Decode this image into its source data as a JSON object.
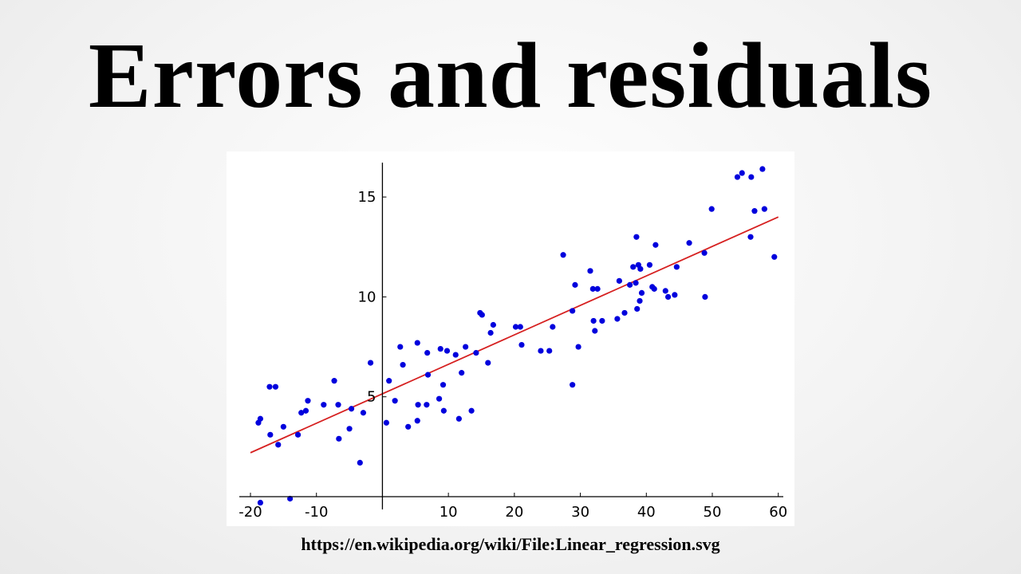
{
  "slide": {
    "title": "Errors and residuals",
    "source_url": "https://en.wikipedia.org/wiki/File:Linear_regression.svg"
  },
  "colors": {
    "points": "#0000dd",
    "regression_line": "#d62020",
    "axes": "#000000"
  },
  "chart_data": {
    "type": "scatter",
    "title": "",
    "xlabel": "",
    "ylabel": "",
    "xlim": [
      -20,
      61
    ],
    "ylim": [
      0,
      16.8
    ],
    "grid": false,
    "x_ticks": [
      -20,
      -10,
      10,
      20,
      30,
      40,
      50,
      60
    ],
    "x_tick_labels": [
      "-20",
      "-10",
      "10",
      "20",
      "30",
      "40",
      "50",
      "60"
    ],
    "y_ticks": [
      5,
      10,
      15
    ],
    "y_tick_labels": [
      "5",
      "10",
      "15"
    ],
    "points": [
      [
        -18.5,
        -0.3
      ],
      [
        -18.8,
        3.7
      ],
      [
        -18.5,
        3.9
      ],
      [
        -17.1,
        5.5
      ],
      [
        -16.2,
        5.5
      ],
      [
        -17,
        3.1
      ],
      [
        -15.8,
        2.6
      ],
      [
        -15,
        3.5
      ],
      [
        -14,
        -0.1
      ],
      [
        -12.8,
        3.1
      ],
      [
        -12.3,
        4.2
      ],
      [
        -11.6,
        4.3
      ],
      [
        -11.3,
        4.8
      ],
      [
        -8.9,
        4.6
      ],
      [
        -7.3,
        5.8
      ],
      [
        -6.7,
        4.6
      ],
      [
        -6.6,
        2.9
      ],
      [
        -5,
        3.4
      ],
      [
        -4.7,
        4.4
      ],
      [
        -3.4,
        1.7
      ],
      [
        -2.9,
        4.2
      ],
      [
        -1.8,
        6.7
      ],
      [
        0.6,
        3.7
      ],
      [
        1,
        5.8
      ],
      [
        1.9,
        4.8
      ],
      [
        2.7,
        7.5
      ],
      [
        3.1,
        6.6
      ],
      [
        3.9,
        3.5
      ],
      [
        5.3,
        3.8
      ],
      [
        5.3,
        7.7
      ],
      [
        5.4,
        4.6
      ],
      [
        6.7,
        4.6
      ],
      [
        6.8,
        7.2
      ],
      [
        6.9,
        6.1
      ],
      [
        8.6,
        4.9
      ],
      [
        8.8,
        7.4
      ],
      [
        9.2,
        5.6
      ],
      [
        9.3,
        4.3
      ],
      [
        9.8,
        7.3
      ],
      [
        11.1,
        7.1
      ],
      [
        11.6,
        3.9
      ],
      [
        12,
        6.2
      ],
      [
        12.6,
        7.5
      ],
      [
        13.5,
        4.3
      ],
      [
        14.2,
        7.2
      ],
      [
        14.8,
        9.2
      ],
      [
        15.1,
        9.1
      ],
      [
        16,
        6.7
      ],
      [
        16.4,
        8.2
      ],
      [
        16.8,
        8.6
      ],
      [
        20.2,
        8.5
      ],
      [
        20.9,
        8.5
      ],
      [
        21.1,
        7.6
      ],
      [
        24,
        7.3
      ],
      [
        25.3,
        7.3
      ],
      [
        25.8,
        8.5
      ],
      [
        27.4,
        12.1
      ],
      [
        28.8,
        9.3
      ],
      [
        28.8,
        5.6
      ],
      [
        29.2,
        10.6
      ],
      [
        29.7,
        7.5
      ],
      [
        31.5,
        11.3
      ],
      [
        31.9,
        10.4
      ],
      [
        32,
        8.8
      ],
      [
        32.2,
        8.3
      ],
      [
        32.6,
        10.4
      ],
      [
        33.3,
        8.8
      ],
      [
        35.6,
        8.9
      ],
      [
        35.9,
        10.8
      ],
      [
        36.7,
        9.2
      ],
      [
        37.5,
        10.6
      ],
      [
        38,
        11.5
      ],
      [
        38.4,
        10.7
      ],
      [
        38.5,
        13
      ],
      [
        38.6,
        9.4
      ],
      [
        38.8,
        11.6
      ],
      [
        39,
        9.8
      ],
      [
        39.1,
        11.4
      ],
      [
        39.3,
        10.2
      ],
      [
        40.5,
        11.6
      ],
      [
        40.9,
        10.5
      ],
      [
        41.2,
        10.4
      ],
      [
        41.4,
        12.6
      ],
      [
        42.9,
        10.3
      ],
      [
        43.3,
        10
      ],
      [
        44.3,
        10.1
      ],
      [
        44.6,
        11.5
      ],
      [
        46.5,
        12.7
      ],
      [
        48.8,
        12.2
      ],
      [
        48.9,
        10
      ],
      [
        49.9,
        14.4
      ],
      [
        53.8,
        16
      ],
      [
        54.5,
        16.2
      ],
      [
        55.8,
        13
      ],
      [
        55.9,
        16
      ],
      [
        56.4,
        14.3
      ],
      [
        57.6,
        16.4
      ],
      [
        57.9,
        14.4
      ],
      [
        59.4,
        12
      ]
    ],
    "regression_line": {
      "x": [
        -20,
        60
      ],
      "y": [
        2.2,
        14
      ]
    }
  }
}
